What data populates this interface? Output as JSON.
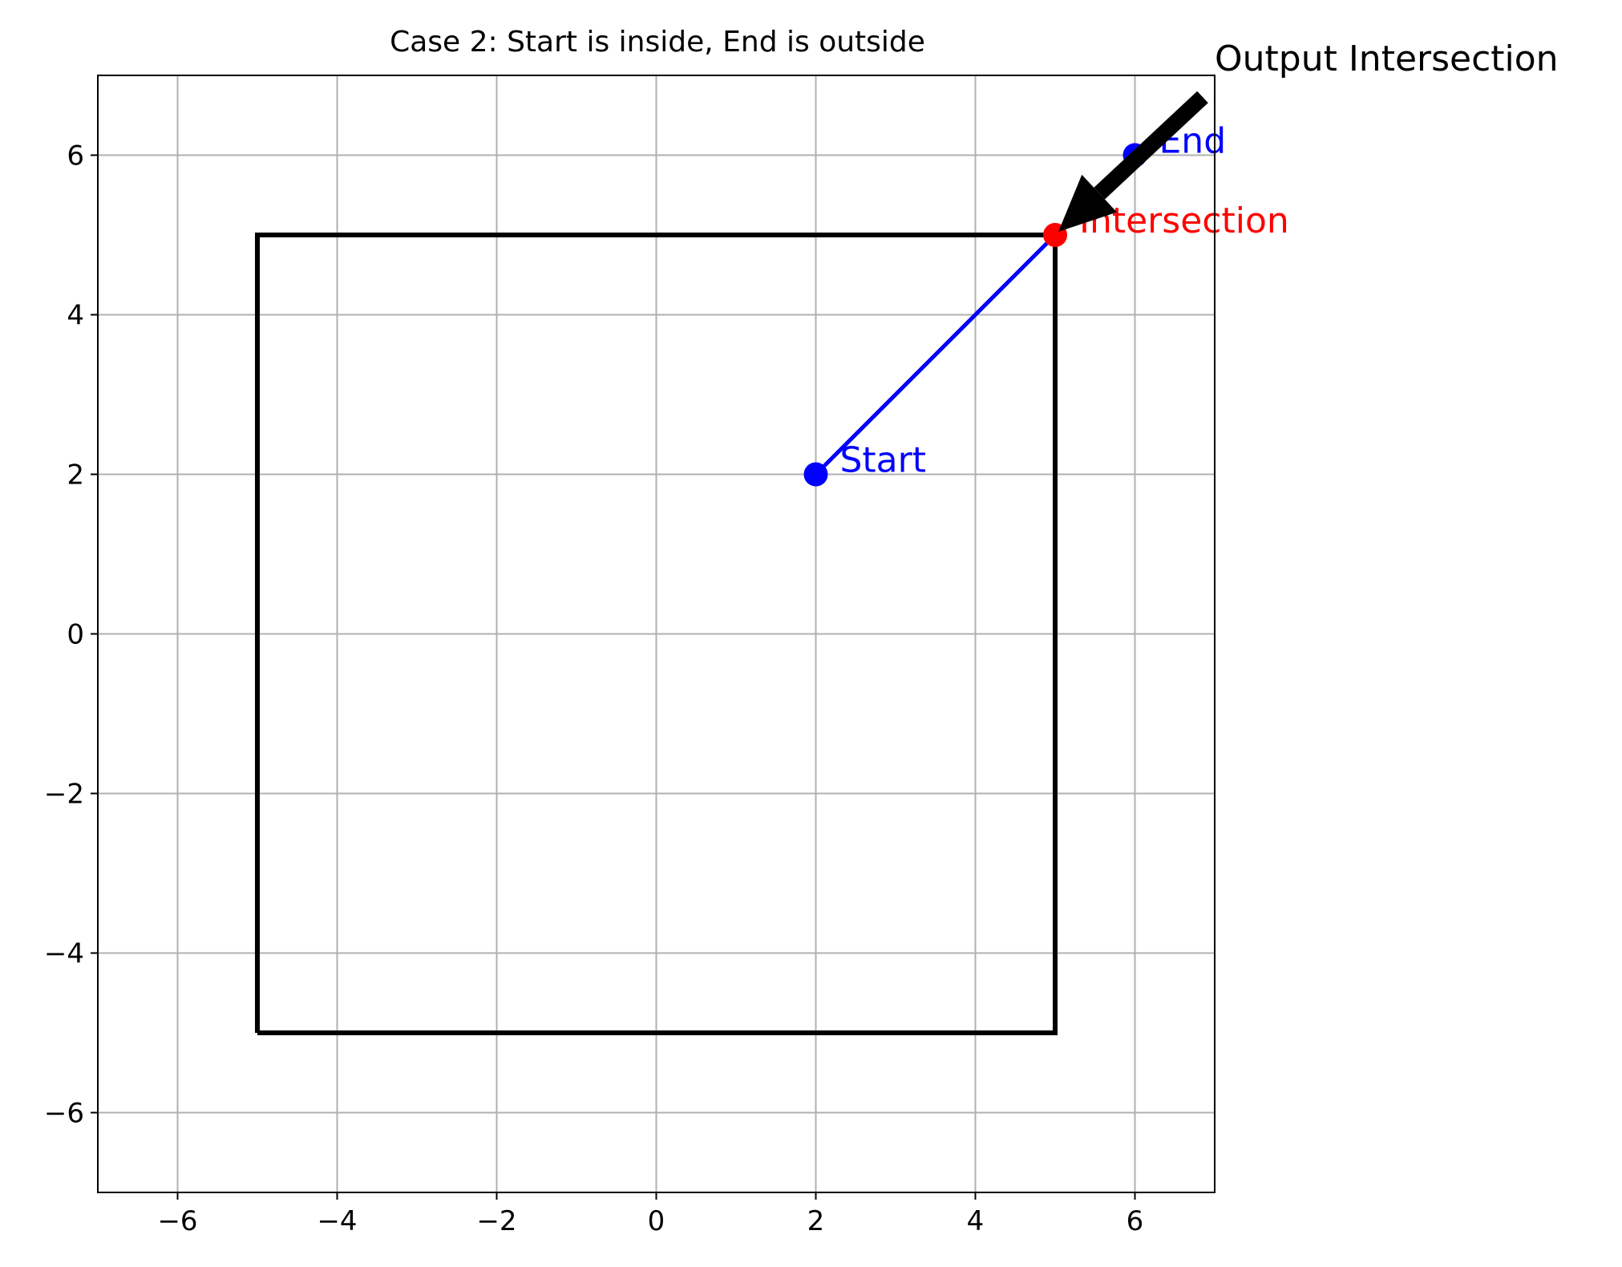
{
  "chart_data": {
    "type": "line",
    "title": "Case 2: Start is inside, End is outside",
    "xlabel": "",
    "ylabel": "",
    "xlim": [
      -7,
      7
    ],
    "ylim": [
      -7,
      7
    ],
    "grid": true,
    "xticks": [
      -6,
      -4,
      -2,
      0,
      2,
      4,
      6
    ],
    "yticks": [
      -6,
      -4,
      -2,
      0,
      2,
      4,
      6
    ],
    "tick_prefix_negative": "−",
    "box": {
      "x": [
        -5,
        5,
        5,
        -5,
        -5
      ],
      "y": [
        -5,
        -5,
        5,
        5,
        -5
      ],
      "color": "#000000"
    },
    "segment": {
      "x": [
        2,
        5
      ],
      "y": [
        2,
        5
      ],
      "color": "#0000ff"
    },
    "points": [
      {
        "id": "start",
        "label": "Start",
        "x": 2,
        "y": 2,
        "color": "#0000ff"
      },
      {
        "id": "end",
        "label": "End",
        "x": 6,
        "y": 6,
        "color": "#0000ff"
      },
      {
        "id": "intersection",
        "label": "Intersection",
        "x": 5,
        "y": 5,
        "color": "#ff0000"
      }
    ],
    "annotation": {
      "text": "Output Intersection",
      "xy": [
        5,
        5
      ],
      "xytext": [
        7,
        7
      ],
      "color": "#000000"
    }
  }
}
